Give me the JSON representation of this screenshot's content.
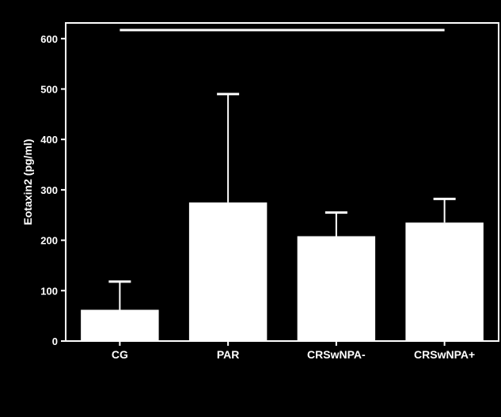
{
  "colors": {
    "background": "#000000",
    "foreground": "#ffffff"
  },
  "chart_data": {
    "type": "bar",
    "title": "",
    "xlabel": "",
    "ylabel": "Eotaxin2 (pg/ml)",
    "categories": [
      "CG",
      "PAR",
      "CRSwNPA-",
      "CRSwNPA+"
    ],
    "values": [
      62,
      275,
      208,
      235
    ],
    "error_upper": [
      118,
      490,
      255,
      282
    ],
    "ylim": [
      0,
      630
    ],
    "yticks": [
      0,
      100,
      200,
      300,
      400,
      500,
      600
    ],
    "grid": false,
    "legend": "none",
    "significance_bracket": {
      "from_category": "CG",
      "to_category": "CRSwNPA+",
      "y": 617
    }
  }
}
